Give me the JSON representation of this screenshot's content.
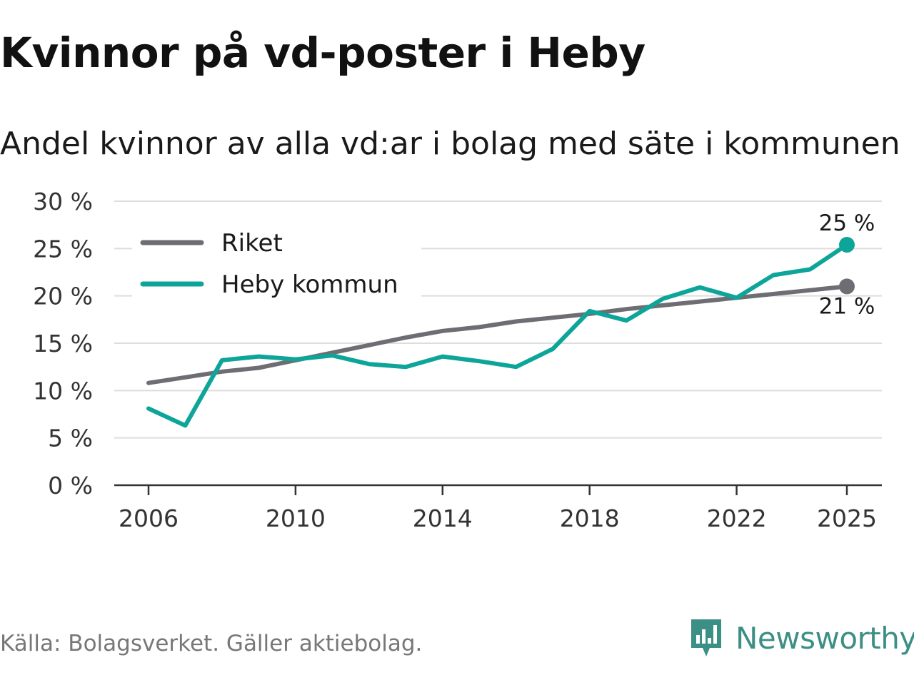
{
  "title": "Kvinnor på vd-poster i Heby",
  "subtitle": "Andel kvinnor av alla vd:ar i bolag med säte i kommunen",
  "source": "Källa: Bolagsverket. Gäller aktiebolag.",
  "brand": {
    "name": "Newsworthy",
    "logo_icon": "bar-chart-speech-bubble-icon",
    "color": "#3b8f85"
  },
  "chart_data": {
    "type": "line",
    "title": "Andel kvinnor av alla vd:ar i bolag med säte i kommunen",
    "xlabel": "",
    "ylabel": "",
    "ylim": [
      0,
      30
    ],
    "xlim": [
      2006,
      2025
    ],
    "y_ticks": [
      0,
      5,
      10,
      15,
      20,
      25,
      30
    ],
    "y_tick_labels": [
      "0 %",
      "5 %",
      "10 %",
      "15 %",
      "20 %",
      "25 %",
      "30 %"
    ],
    "x_ticks": [
      2006,
      2010,
      2014,
      2018,
      2022,
      2025
    ],
    "x_tick_labels": [
      "2006",
      "2010",
      "2014",
      "2018",
      "2022",
      "2025"
    ],
    "grid": true,
    "legend_position": "top-left",
    "x": [
      2006,
      2007,
      2008,
      2009,
      2010,
      2011,
      2012,
      2013,
      2014,
      2015,
      2016,
      2017,
      2018,
      2019,
      2020,
      2021,
      2022,
      2023,
      2024,
      2025
    ],
    "series": [
      {
        "name": "Riket",
        "color": "#6e6d73",
        "values": [
          10.8,
          11.4,
          12.0,
          12.4,
          13.2,
          14.0,
          14.8,
          15.6,
          16.3,
          16.7,
          17.3,
          17.7,
          18.1,
          18.6,
          19.0,
          19.4,
          19.8,
          20.2,
          20.6,
          21.0
        ],
        "end_label": "21 %"
      },
      {
        "name": "Heby kommun",
        "color": "#0da599",
        "values": [
          8.1,
          6.3,
          13.2,
          13.6,
          13.3,
          13.7,
          12.8,
          12.5,
          13.6,
          13.1,
          12.5,
          14.4,
          18.4,
          17.4,
          19.7,
          20.9,
          19.8,
          22.2,
          22.8,
          25.4
        ],
        "end_label": "25 %"
      }
    ]
  }
}
